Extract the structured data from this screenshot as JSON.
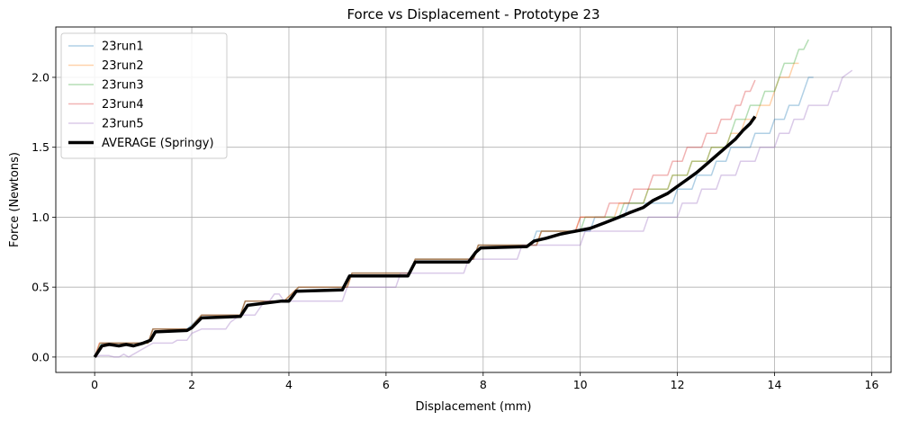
{
  "chart_data": {
    "type": "line",
    "title": "Force vs Displacement - Prototype 23",
    "xlabel": "Displacement (mm)",
    "ylabel": "Force (Newtons)",
    "xlim": [
      -0.8,
      16.4
    ],
    "ylim": [
      -0.11,
      2.36
    ],
    "xticks": [
      0,
      2,
      4,
      6,
      8,
      10,
      12,
      14,
      16
    ],
    "yticks": [
      0.0,
      0.5,
      1.0,
      1.5,
      2.0
    ],
    "xtick_labels": [
      "0",
      "2",
      "4",
      "6",
      "8",
      "10",
      "12",
      "14",
      "16"
    ],
    "ytick_labels": [
      "0.0",
      "0.5",
      "1.0",
      "1.5",
      "2.0"
    ],
    "grid": true,
    "legend_position": "top-left",
    "series": [
      {
        "name": "23run1",
        "color": "#1f77b4",
        "alpha": 0.35,
        "width": 1.5,
        "points": [
          [
            0,
            0
          ],
          [
            0.15,
            0.1
          ],
          [
            0.6,
            0.1
          ],
          [
            0.65,
            0.09
          ],
          [
            0.8,
            0.1
          ],
          [
            1.1,
            0.1
          ],
          [
            1.2,
            0.2
          ],
          [
            1.9,
            0.2
          ],
          [
            2.0,
            0.23
          ],
          [
            2.2,
            0.3
          ],
          [
            3.0,
            0.3
          ],
          [
            3.1,
            0.4
          ],
          [
            3.9,
            0.4
          ],
          [
            4.05,
            0.42
          ],
          [
            4.2,
            0.5
          ],
          [
            5.1,
            0.5
          ],
          [
            5.3,
            0.6
          ],
          [
            6.5,
            0.6
          ],
          [
            6.6,
            0.7
          ],
          [
            7.8,
            0.7
          ],
          [
            7.9,
            0.8
          ],
          [
            9.0,
            0.8
          ],
          [
            9.1,
            0.9
          ],
          [
            10.2,
            0.9
          ],
          [
            10.3,
            1.0
          ],
          [
            10.9,
            1.0
          ],
          [
            11.0,
            1.1
          ],
          [
            11.9,
            1.1
          ],
          [
            12.0,
            1.2
          ],
          [
            12.3,
            1.2
          ],
          [
            12.4,
            1.3
          ],
          [
            12.7,
            1.3
          ],
          [
            12.8,
            1.4
          ],
          [
            13.0,
            1.4
          ],
          [
            13.1,
            1.5
          ],
          [
            13.5,
            1.5
          ],
          [
            13.6,
            1.6
          ],
          [
            13.9,
            1.6
          ],
          [
            14.0,
            1.7
          ],
          [
            14.2,
            1.7
          ],
          [
            14.3,
            1.8
          ],
          [
            14.5,
            1.8
          ],
          [
            14.6,
            1.9
          ],
          [
            14.7,
            2.0
          ],
          [
            14.8,
            2.0
          ]
        ]
      },
      {
        "name": "23run2",
        "color": "#ff7f0e",
        "alpha": 0.35,
        "width": 1.5,
        "points": [
          [
            0,
            0
          ],
          [
            0.1,
            0.1
          ],
          [
            0.75,
            0.1
          ],
          [
            1.1,
            0.1
          ],
          [
            1.2,
            0.2
          ],
          [
            1.95,
            0.2
          ],
          [
            2.2,
            0.3
          ],
          [
            3.0,
            0.3
          ],
          [
            3.1,
            0.4
          ],
          [
            3.9,
            0.4
          ],
          [
            4.2,
            0.5
          ],
          [
            5.2,
            0.5
          ],
          [
            5.3,
            0.6
          ],
          [
            6.5,
            0.6
          ],
          [
            6.6,
            0.7
          ],
          [
            7.8,
            0.7
          ],
          [
            7.9,
            0.8
          ],
          [
            9.1,
            0.8
          ],
          [
            9.2,
            0.9
          ],
          [
            9.9,
            0.9
          ],
          [
            10.0,
            1.0
          ],
          [
            10.7,
            1.0
          ],
          [
            10.8,
            1.1
          ],
          [
            11.3,
            1.1
          ],
          [
            11.4,
            1.2
          ],
          [
            11.8,
            1.2
          ],
          [
            11.9,
            1.3
          ],
          [
            12.2,
            1.3
          ],
          [
            12.3,
            1.4
          ],
          [
            12.6,
            1.4
          ],
          [
            12.7,
            1.5
          ],
          [
            13.0,
            1.5
          ],
          [
            13.1,
            1.6
          ],
          [
            13.3,
            1.6
          ],
          [
            13.4,
            1.7
          ],
          [
            13.6,
            1.7
          ],
          [
            13.7,
            1.8
          ],
          [
            13.9,
            1.8
          ],
          [
            14.0,
            1.9
          ],
          [
            14.1,
            2.0
          ],
          [
            14.3,
            2.0
          ],
          [
            14.4,
            2.1
          ],
          [
            14.5,
            2.1
          ]
        ]
      },
      {
        "name": "23run3",
        "color": "#2ca02c",
        "alpha": 0.35,
        "width": 1.5,
        "points": [
          [
            0,
            0
          ],
          [
            0.12,
            0.1
          ],
          [
            0.75,
            0.1
          ],
          [
            1.1,
            0.1
          ],
          [
            1.2,
            0.2
          ],
          [
            1.95,
            0.2
          ],
          [
            2.2,
            0.3
          ],
          [
            3.0,
            0.3
          ],
          [
            3.1,
            0.4
          ],
          [
            3.9,
            0.4
          ],
          [
            4.2,
            0.5
          ],
          [
            5.2,
            0.5
          ],
          [
            5.3,
            0.6
          ],
          [
            6.5,
            0.6
          ],
          [
            6.6,
            0.7
          ],
          [
            7.8,
            0.7
          ],
          [
            7.9,
            0.8
          ],
          [
            9.1,
            0.8
          ],
          [
            9.2,
            0.9
          ],
          [
            10.0,
            0.9
          ],
          [
            10.1,
            1.0
          ],
          [
            10.8,
            1.0
          ],
          [
            10.9,
            1.1
          ],
          [
            11.3,
            1.1
          ],
          [
            11.4,
            1.2
          ],
          [
            11.8,
            1.2
          ],
          [
            11.9,
            1.3
          ],
          [
            12.2,
            1.3
          ],
          [
            12.3,
            1.4
          ],
          [
            12.6,
            1.4
          ],
          [
            12.7,
            1.5
          ],
          [
            13.0,
            1.5
          ],
          [
            13.1,
            1.6
          ],
          [
            13.2,
            1.7
          ],
          [
            13.4,
            1.7
          ],
          [
            13.5,
            1.8
          ],
          [
            13.7,
            1.8
          ],
          [
            13.8,
            1.9
          ],
          [
            14.0,
            1.9
          ],
          [
            14.1,
            2.0
          ],
          [
            14.2,
            2.1
          ],
          [
            14.4,
            2.1
          ],
          [
            14.5,
            2.2
          ],
          [
            14.6,
            2.2
          ],
          [
            14.7,
            2.27
          ]
        ]
      },
      {
        "name": "23run4",
        "color": "#d62728",
        "alpha": 0.35,
        "width": 1.5,
        "points": [
          [
            0,
            0
          ],
          [
            0.1,
            0.1
          ],
          [
            0.75,
            0.1
          ],
          [
            1.1,
            0.1
          ],
          [
            1.2,
            0.2
          ],
          [
            1.95,
            0.2
          ],
          [
            2.2,
            0.3
          ],
          [
            3.0,
            0.3
          ],
          [
            3.1,
            0.4
          ],
          [
            3.9,
            0.4
          ],
          [
            4.2,
            0.5
          ],
          [
            5.2,
            0.5
          ],
          [
            5.3,
            0.6
          ],
          [
            6.5,
            0.6
          ],
          [
            6.6,
            0.7
          ],
          [
            7.8,
            0.7
          ],
          [
            7.9,
            0.8
          ],
          [
            9.1,
            0.8
          ],
          [
            9.2,
            0.9
          ],
          [
            9.9,
            0.9
          ],
          [
            10.0,
            1.0
          ],
          [
            10.5,
            1.0
          ],
          [
            10.6,
            1.1
          ],
          [
            11.0,
            1.1
          ],
          [
            11.1,
            1.2
          ],
          [
            11.4,
            1.2
          ],
          [
            11.5,
            1.3
          ],
          [
            11.8,
            1.3
          ],
          [
            11.9,
            1.4
          ],
          [
            12.1,
            1.4
          ],
          [
            12.2,
            1.5
          ],
          [
            12.5,
            1.5
          ],
          [
            12.6,
            1.6
          ],
          [
            12.8,
            1.6
          ],
          [
            12.9,
            1.7
          ],
          [
            13.1,
            1.7
          ],
          [
            13.2,
            1.8
          ],
          [
            13.3,
            1.8
          ],
          [
            13.4,
            1.9
          ],
          [
            13.5,
            1.9
          ],
          [
            13.6,
            1.98
          ]
        ]
      },
      {
        "name": "23run5",
        "color": "#9467bd",
        "alpha": 0.35,
        "width": 1.5,
        "points": [
          [
            0,
            0
          ],
          [
            0.1,
            0.01
          ],
          [
            0.3,
            0.01
          ],
          [
            0.4,
            0.0
          ],
          [
            0.5,
            0.0
          ],
          [
            0.6,
            0.02
          ],
          [
            0.7,
            0.0
          ],
          [
            0.75,
            0.01
          ],
          [
            1.1,
            0.08
          ],
          [
            1.2,
            0.1
          ],
          [
            1.6,
            0.1
          ],
          [
            1.7,
            0.12
          ],
          [
            1.9,
            0.12
          ],
          [
            2.0,
            0.17
          ],
          [
            2.2,
            0.2
          ],
          [
            2.7,
            0.2
          ],
          [
            2.8,
            0.25
          ],
          [
            3.0,
            0.3
          ],
          [
            3.3,
            0.3
          ],
          [
            3.4,
            0.35
          ],
          [
            3.5,
            0.4
          ],
          [
            3.6,
            0.4
          ],
          [
            3.7,
            0.45
          ],
          [
            3.8,
            0.45
          ],
          [
            3.9,
            0.4
          ],
          [
            5.1,
            0.4
          ],
          [
            5.2,
            0.5
          ],
          [
            6.2,
            0.5
          ],
          [
            6.3,
            0.6
          ],
          [
            7.6,
            0.6
          ],
          [
            7.7,
            0.7
          ],
          [
            8.7,
            0.7
          ],
          [
            8.8,
            0.8
          ],
          [
            10.0,
            0.8
          ],
          [
            10.1,
            0.9
          ],
          [
            11.3,
            0.9
          ],
          [
            11.4,
            1.0
          ],
          [
            12.0,
            1.0
          ],
          [
            12.1,
            1.1
          ],
          [
            12.4,
            1.1
          ],
          [
            12.5,
            1.2
          ],
          [
            12.8,
            1.2
          ],
          [
            12.9,
            1.3
          ],
          [
            13.2,
            1.3
          ],
          [
            13.3,
            1.4
          ],
          [
            13.6,
            1.4
          ],
          [
            13.7,
            1.5
          ],
          [
            14.0,
            1.5
          ],
          [
            14.1,
            1.6
          ],
          [
            14.3,
            1.6
          ],
          [
            14.4,
            1.7
          ],
          [
            14.6,
            1.7
          ],
          [
            14.7,
            1.8
          ],
          [
            15.1,
            1.8
          ],
          [
            15.2,
            1.9
          ],
          [
            15.3,
            1.9
          ],
          [
            15.4,
            2.0
          ],
          [
            15.6,
            2.05
          ]
        ]
      },
      {
        "name": "AVERAGE (Springy)",
        "color": "#000000",
        "alpha": 1,
        "width": 3.5,
        "points": [
          [
            0,
            0
          ],
          [
            0.15,
            0.08
          ],
          [
            0.3,
            0.09
          ],
          [
            0.5,
            0.08
          ],
          [
            0.65,
            0.09
          ],
          [
            0.8,
            0.08
          ],
          [
            1.0,
            0.1
          ],
          [
            1.15,
            0.12
          ],
          [
            1.25,
            0.18
          ],
          [
            1.9,
            0.19
          ],
          [
            2.0,
            0.21
          ],
          [
            2.2,
            0.28
          ],
          [
            3.0,
            0.29
          ],
          [
            3.15,
            0.37
          ],
          [
            3.85,
            0.4
          ],
          [
            4.0,
            0.4
          ],
          [
            4.15,
            0.47
          ],
          [
            5.1,
            0.48
          ],
          [
            5.25,
            0.58
          ],
          [
            6.45,
            0.58
          ],
          [
            6.6,
            0.68
          ],
          [
            7.7,
            0.68
          ],
          [
            7.85,
            0.75
          ],
          [
            7.95,
            0.78
          ],
          [
            8.9,
            0.79
          ],
          [
            9.05,
            0.83
          ],
          [
            9.3,
            0.85
          ],
          [
            9.6,
            0.88
          ],
          [
            9.9,
            0.9
          ],
          [
            10.2,
            0.92
          ],
          [
            10.5,
            0.96
          ],
          [
            10.8,
            1.0
          ],
          [
            11.0,
            1.03
          ],
          [
            11.3,
            1.07
          ],
          [
            11.5,
            1.12
          ],
          [
            11.8,
            1.17
          ],
          [
            12.0,
            1.22
          ],
          [
            12.2,
            1.27
          ],
          [
            12.4,
            1.32
          ],
          [
            12.6,
            1.38
          ],
          [
            12.8,
            1.44
          ],
          [
            13.0,
            1.5
          ],
          [
            13.2,
            1.56
          ],
          [
            13.35,
            1.62
          ],
          [
            13.5,
            1.67
          ],
          [
            13.6,
            1.72
          ]
        ]
      }
    ]
  }
}
